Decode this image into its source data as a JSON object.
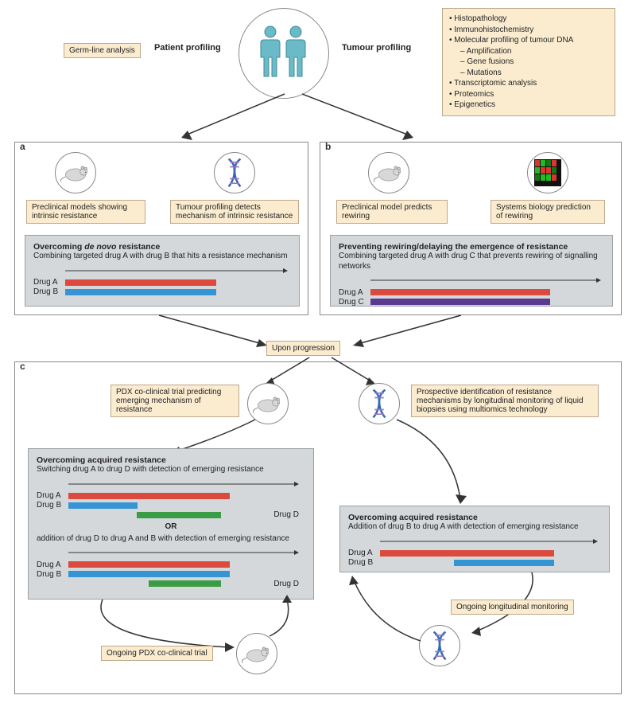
{
  "top": {
    "germline_label": "Germ-line analysis",
    "patient_profiling": "Patient profiling",
    "tumour_profiling": "Tumour profiling",
    "tumour_list": [
      {
        "t": "Histopathology",
        "lvl": 0
      },
      {
        "t": "Immunohistochemistry",
        "lvl": 0
      },
      {
        "t": "Molecular profiling of tumour DNA",
        "lvl": 0
      },
      {
        "t": "Amplification",
        "lvl": 1
      },
      {
        "t": "Gene fusions",
        "lvl": 1
      },
      {
        "t": "Mutations",
        "lvl": 1
      },
      {
        "t": "Transcriptomic analysis",
        "lvl": 0
      },
      {
        "t": "Proteomics",
        "lvl": 0
      },
      {
        "t": "Epigenetics",
        "lvl": 0
      }
    ]
  },
  "panel_a": {
    "letter": "a",
    "left_tag": "Preclinical models showing intrinsic resistance",
    "right_tag": "Tumour profiling detects mechanism of intrinsic resistance",
    "title": "Overcoming de novo resistance",
    "sub": "Combining targeted drug A with drug B that hits a resistance mechanism",
    "bars": [
      {
        "label": "Drug A",
        "cls": "drugA",
        "start": 0,
        "len": 0.68
      },
      {
        "label": "Drug B",
        "cls": "drugB",
        "start": 0,
        "len": 0.68
      }
    ]
  },
  "panel_b": {
    "letter": "b",
    "left_tag": "Preclinical model predicts rewiring",
    "right_tag": "Systems biology prediction of rewiring",
    "title": "Preventing rewiring/delaying the emergence of resistance",
    "sub": "Combining targeted drug A with drug C that prevents rewiring of signalling networks",
    "bars": [
      {
        "label": "Drug A",
        "cls": "drugA",
        "start": 0,
        "len": 0.78
      },
      {
        "label": "Drug C",
        "cls": "drugC",
        "start": 0,
        "len": 0.78
      }
    ]
  },
  "upon_progression": "Upon progression",
  "panel_c": {
    "letter": "c",
    "pdx_tag": "PDX co-clinical trial predicting emerging mechanism of resistance",
    "prospective_tag": "Prospective identification of resistance mechanisms by longitudinal monitoring of liquid biopsies using multiomics technology",
    "left_block": {
      "title": "Overcoming acquired resistance",
      "sub1": "Switching drug A to drug D with detection of emerging resistance",
      "set1": [
        {
          "label": "Drug A",
          "cls": "drugA",
          "start": 0,
          "len": 0.7
        },
        {
          "label": "Drug B",
          "cls": "drugB",
          "start": 0,
          "len": 0.3
        },
        {
          "label": "",
          "cls": "drugD",
          "start": 0.34,
          "len": 0.42,
          "after_label": "Drug D"
        }
      ],
      "or_text": "OR",
      "sub2": "addition of drug D to drug A and B with detection of emerging resistance",
      "set2": [
        {
          "label": "Drug A",
          "cls": "drugA",
          "start": 0,
          "len": 0.7
        },
        {
          "label": "Drug B",
          "cls": "drugB",
          "start": 0,
          "len": 0.7
        },
        {
          "label": "",
          "cls": "drugD",
          "start": 0.4,
          "len": 0.36,
          "after_label": "Drug D"
        }
      ]
    },
    "right_block": {
      "title": "Overcoming acquired resistance",
      "sub": "Addition of drug B to drug A with detection of emerging resistance",
      "bars": [
        {
          "label": "Drug A",
          "cls": "drugA",
          "start": 0,
          "len": 0.8
        },
        {
          "label": "Drug B",
          "cls": "drugB",
          "start": 0.34,
          "len": 0.46
        }
      ]
    },
    "ongoing_pdx": "Ongoing PDX co-clinical trial",
    "ongoing_long": "Ongoing longitudinal monitoring"
  },
  "colors": {
    "tag_bg": "#fbecd0",
    "gray_bg": "#d4d8db",
    "drugA": "#db4a3c",
    "drugB": "#3594d3",
    "drugC": "#5a3a8e",
    "drugD": "#3a9d46",
    "person": "#6bbac8"
  }
}
